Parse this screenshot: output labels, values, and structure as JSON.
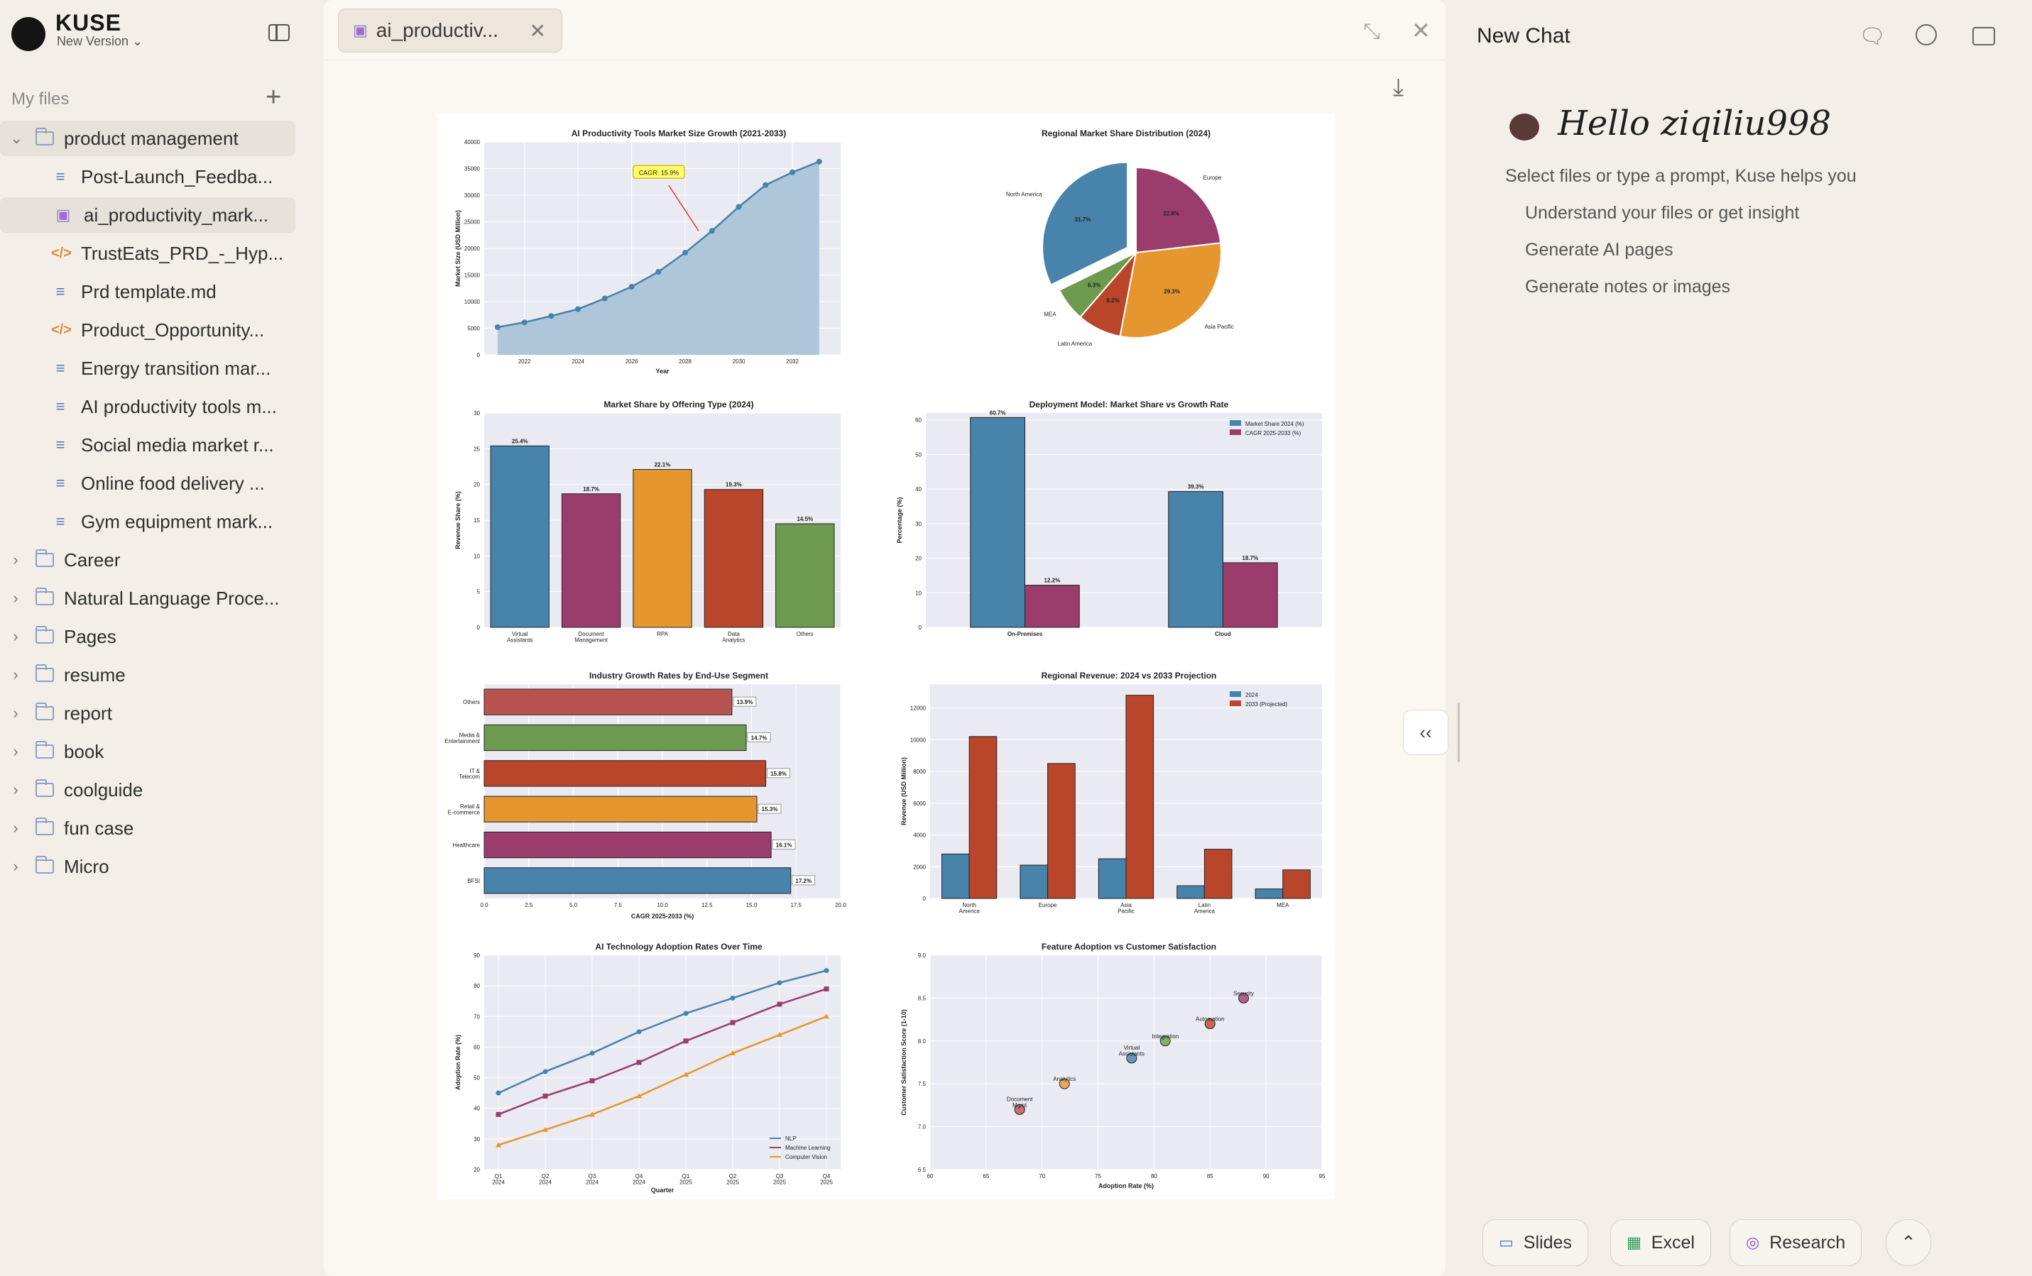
{
  "app": {
    "brand": "KUSE",
    "version": "New Version"
  },
  "sidebar": {
    "header": "My files",
    "tree": [
      {
        "type": "folder",
        "label": "product management",
        "open": true,
        "selected": true
      },
      {
        "type": "doc",
        "label": "Post-Launch_Feedba..."
      },
      {
        "type": "img",
        "label": "ai_productivity_mark...",
        "selected": true
      },
      {
        "type": "code",
        "label": "TrustEats_PRD_-_Hyp..."
      },
      {
        "type": "doc",
        "label": "Prd template.md"
      },
      {
        "type": "code",
        "label": "Product_Opportunity..."
      },
      {
        "type": "doc",
        "label": "Energy transition mar..."
      },
      {
        "type": "doc",
        "label": "AI productivity tools m..."
      },
      {
        "type": "doc",
        "label": "Social media market r..."
      },
      {
        "type": "doc",
        "label": "Online food delivery ..."
      },
      {
        "type": "doc",
        "label": "Gym equipment mark..."
      },
      {
        "type": "folder",
        "label": "Career"
      },
      {
        "type": "folder",
        "label": "Natural Language Proce..."
      },
      {
        "type": "folder",
        "label": "Pages"
      },
      {
        "type": "folder",
        "label": "resume"
      },
      {
        "type": "folder",
        "label": "report"
      },
      {
        "type": "folder",
        "label": "book"
      },
      {
        "type": "folder",
        "label": "coolguide"
      },
      {
        "type": "folder",
        "label": "fun case"
      },
      {
        "type": "folder",
        "label": "Micro"
      }
    ]
  },
  "viewer": {
    "tab_label": "ai_productiv..."
  },
  "chat": {
    "title": "New Chat",
    "greeting": "Hello ziqiliu998",
    "subtitle": "Select files or type a prompt, Kuse helps you",
    "suggestions": [
      "Understand your files or get insight",
      "Generate AI pages",
      "Generate notes or images"
    ],
    "tools": [
      "Slides",
      "Excel",
      "Research"
    ]
  },
  "chart_data": [
    {
      "type": "area",
      "title": "AI Productivity Tools Market Size Growth (2021-2033)",
      "xlabel": "Year",
      "ylabel": "Market Size (USD Million)",
      "x": [
        2021,
        2022,
        2023,
        2024,
        2025,
        2026,
        2027,
        2028,
        2029,
        2030,
        2031,
        2032,
        2033
      ],
      "values": [
        5200,
        6100,
        7300,
        8600,
        10600,
        12800,
        15600,
        19200,
        23300,
        27800,
        31900,
        34300,
        36300
      ],
      "ylim": [
        0,
        40000
      ],
      "yticks": [
        0,
        5000,
        10000,
        15000,
        20000,
        25000,
        30000,
        35000,
        40000
      ],
      "xticks": [
        2022,
        2024,
        2026,
        2028,
        2030,
        2032
      ],
      "annotation": {
        "text": "CAGR: 15.9%",
        "x": 2028.5,
        "y": 23300
      }
    },
    {
      "type": "pie",
      "title": "Regional Market Share Distribution (2024)",
      "categories": [
        "North America",
        "Europe",
        "Asia Pacific",
        "Latin America",
        "MEA"
      ],
      "values": [
        31.7,
        22.8,
        29.3,
        8.2,
        6.3
      ],
      "labels": [
        "31.7%",
        "22.8%",
        "29.3%",
        "8.2%",
        "6.3%"
      ],
      "colors": [
        "#4783aa",
        "#9a3d6d",
        "#e6962f",
        "#b9462a",
        "#6e9a4f"
      ],
      "explode": "North America"
    },
    {
      "type": "bar",
      "title": "Market Share by Offering Type (2024)",
      "ylabel": "Revenue Share (%)",
      "categories": [
        "Virtual\nAssistants",
        "Document\nManagement",
        "RPA",
        "Data\nAnalytics",
        "Others"
      ],
      "values": [
        25.4,
        18.7,
        22.1,
        19.3,
        14.5
      ],
      "labels": [
        "25.4%",
        "18.7%",
        "22.1%",
        "19.3%",
        "14.5%"
      ],
      "colors": [
        "#4783aa",
        "#9a3d6d",
        "#e6962f",
        "#b9462a",
        "#6e9a4f"
      ],
      "ylim": [
        0,
        30
      ],
      "yticks": [
        0,
        5,
        10,
        15,
        20,
        25,
        30
      ]
    },
    {
      "type": "bar",
      "title": "Deployment Model: Market Share vs Growth Rate",
      "ylabel": "Percentage (%)",
      "categories": [
        "On-Premises",
        "Cloud"
      ],
      "series": [
        {
          "name": "Market Share 2024 (%)",
          "values": [
            60.7,
            39.3
          ],
          "labels": [
            "60.7%",
            "39.3%"
          ],
          "color": "#4783aa"
        },
        {
          "name": "CAGR 2025-2033 (%)",
          "values": [
            12.2,
            18.7
          ],
          "labels": [
            "12.2%",
            "18.7%"
          ],
          "color": "#9a3d6d"
        }
      ],
      "ylim": [
        0,
        62
      ],
      "yticks": [
        0,
        10,
        20,
        30,
        40,
        50,
        60
      ]
    },
    {
      "type": "bar",
      "orientation": "horizontal",
      "title": "Industry Growth Rates by End-Use Segment",
      "xlabel": "CAGR 2025-2033 (%)",
      "categories": [
        "Others",
        "Media &\nEntertainment",
        "IT &\nTelecom",
        "Retail &\nE-commerce",
        "Healthcare",
        "BFSI"
      ],
      "values": [
        13.9,
        14.7,
        15.8,
        15.3,
        16.1,
        17.2
      ],
      "labels": [
        "13.9%",
        "14.7%",
        "15.8%",
        "15.3%",
        "16.1%",
        "17.2%"
      ],
      "colors": [
        "#b85450",
        "#6e9a4f",
        "#b9462a",
        "#e6962f",
        "#9a3d6d",
        "#4783aa"
      ],
      "xlim": [
        0,
        20
      ],
      "xticks": [
        "0.0",
        "2.5",
        "5.0",
        "7.5",
        "10.0",
        "12.5",
        "15.0",
        "17.5",
        "20.0"
      ]
    },
    {
      "type": "bar",
      "title": "Regional Revenue: 2024 vs 2033 Projection",
      "ylabel": "Revenue (USD Million)",
      "categories": [
        "North\nAmerica",
        "Europe",
        "Asia\nPacific",
        "Latin\nAmerica",
        "MEA"
      ],
      "series": [
        {
          "name": "2024",
          "values": [
            2800,
            2100,
            2500,
            800,
            600
          ],
          "color": "#4783aa"
        },
        {
          "name": "2033 (Projected)",
          "values": [
            10200,
            8500,
            12800,
            3100,
            1800
          ],
          "color": "#b9462a"
        }
      ],
      "ylim": [
        0,
        13500
      ],
      "yticks": [
        0,
        2000,
        4000,
        6000,
        8000,
        10000,
        12000
      ]
    },
    {
      "type": "line",
      "title": "AI Technology Adoption Rates Over Time",
      "xlabel": "Quarter",
      "ylabel": "Adoption Rate (%)",
      "categories": [
        "Q1\n2024",
        "Q2\n2024",
        "Q3\n2024",
        "Q4\n2024",
        "Q1\n2025",
        "Q2\n2025",
        "Q3\n2025",
        "Q4\n2025"
      ],
      "series": [
        {
          "name": "NLP",
          "values": [
            45,
            52,
            58,
            65,
            71,
            76,
            81,
            85
          ],
          "color": "#4783aa",
          "marker": "circle"
        },
        {
          "name": "Machine Learning",
          "values": [
            38,
            44,
            49,
            55,
            62,
            68,
            74,
            79
          ],
          "color": "#9a3d6d",
          "marker": "square"
        },
        {
          "name": "Computer Vision",
          "values": [
            28,
            33,
            38,
            44,
            51,
            58,
            64,
            70
          ],
          "color": "#e6962f",
          "marker": "triangle"
        }
      ],
      "ylim": [
        20,
        90
      ],
      "yticks": [
        20,
        30,
        40,
        50,
        60,
        70,
        80,
        90
      ]
    },
    {
      "type": "scatter",
      "title": "Feature Adoption vs Customer Satisfaction",
      "xlabel": "Adoption Rate (%)",
      "ylabel": "Customer Satisfaction Score (1-10)",
      "points": [
        {
          "label": "Document\nMgmt",
          "x": 68,
          "y": 7.2,
          "color": "#b85450"
        },
        {
          "label": "Analytics",
          "x": 72,
          "y": 7.5,
          "color": "#e6962f"
        },
        {
          "label": "Virtual\nAssistants",
          "x": 78,
          "y": 7.8,
          "color": "#4783aa"
        },
        {
          "label": "Integration",
          "x": 81,
          "y": 8.0,
          "color": "#6e9a4f"
        },
        {
          "label": "Automation",
          "x": 85,
          "y": 8.2,
          "color": "#b9462a"
        },
        {
          "label": "Security",
          "x": 88,
          "y": 8.5,
          "color": "#9a3d6d"
        }
      ],
      "xlim": [
        60,
        95
      ],
      "ylim": [
        6.5,
        9.0
      ],
      "xticks": [
        60,
        65,
        70,
        75,
        80,
        85,
        90,
        95
      ],
      "yticks": [
        "6.5",
        "7.0",
        "7.5",
        "8.0",
        "8.5",
        "9.0"
      ]
    }
  ]
}
